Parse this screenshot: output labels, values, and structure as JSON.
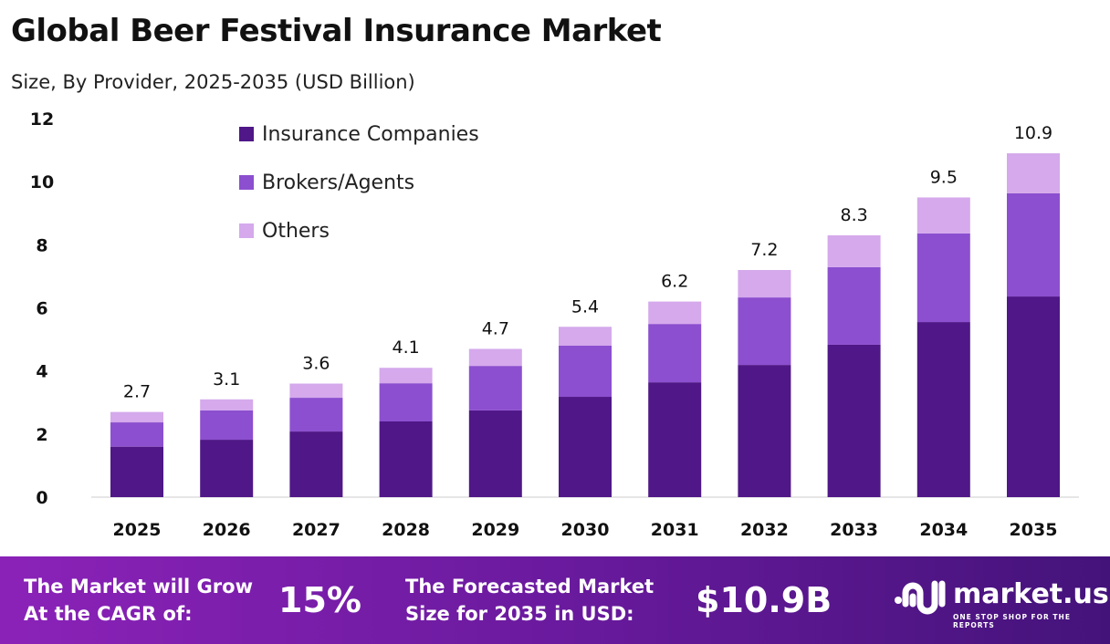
{
  "chart_data": {
    "type": "bar",
    "stacked": true,
    "title": "Global Beer Festival Insurance Market",
    "subtitle": "Size, By Provider, 2025-2035 (USD Billion)",
    "categories": [
      "2025",
      "2026",
      "2027",
      "2028",
      "2029",
      "2030",
      "2031",
      "2032",
      "2033",
      "2034",
      "2035"
    ],
    "series": [
      {
        "name": "Insurance Companies",
        "color": "#4f1787",
        "values": [
          1.6,
          1.82,
          2.08,
          2.4,
          2.75,
          3.18,
          3.64,
          4.19,
          4.83,
          5.55,
          6.36
        ]
      },
      {
        "name": "Brokers/Agents",
        "color": "#8c4fcf",
        "values": [
          0.77,
          0.93,
          1.07,
          1.21,
          1.41,
          1.62,
          1.85,
          2.14,
          2.46,
          2.81,
          3.27
        ]
      },
      {
        "name": "Others",
        "color": "#d5a9ec",
        "values": [
          0.33,
          0.35,
          0.45,
          0.49,
          0.54,
          0.6,
          0.71,
          0.87,
          1.01,
          1.14,
          1.27
        ]
      }
    ],
    "totals": [
      "2.7",
      "3.1",
      "3.6",
      "4.1",
      "4.7",
      "5.4",
      "6.2",
      "7.2",
      "8.3",
      "9.5",
      "10.9"
    ],
    "ylim": [
      0,
      12
    ],
    "yticks": [
      "0",
      "2",
      "4",
      "6",
      "8",
      "10",
      "12"
    ],
    "grid": false,
    "legend": "top-left"
  },
  "footer": {
    "cagr_label": "The Market will Grow At the CAGR of:",
    "cagr_value": "15%",
    "forecast_label": "The Forecasted Market Size for 2035 in USD:",
    "forecast_value": "$10.9B",
    "logo_text": "market.us",
    "logo_tagline": "ONE STOP SHOP FOR THE REPORTS"
  }
}
